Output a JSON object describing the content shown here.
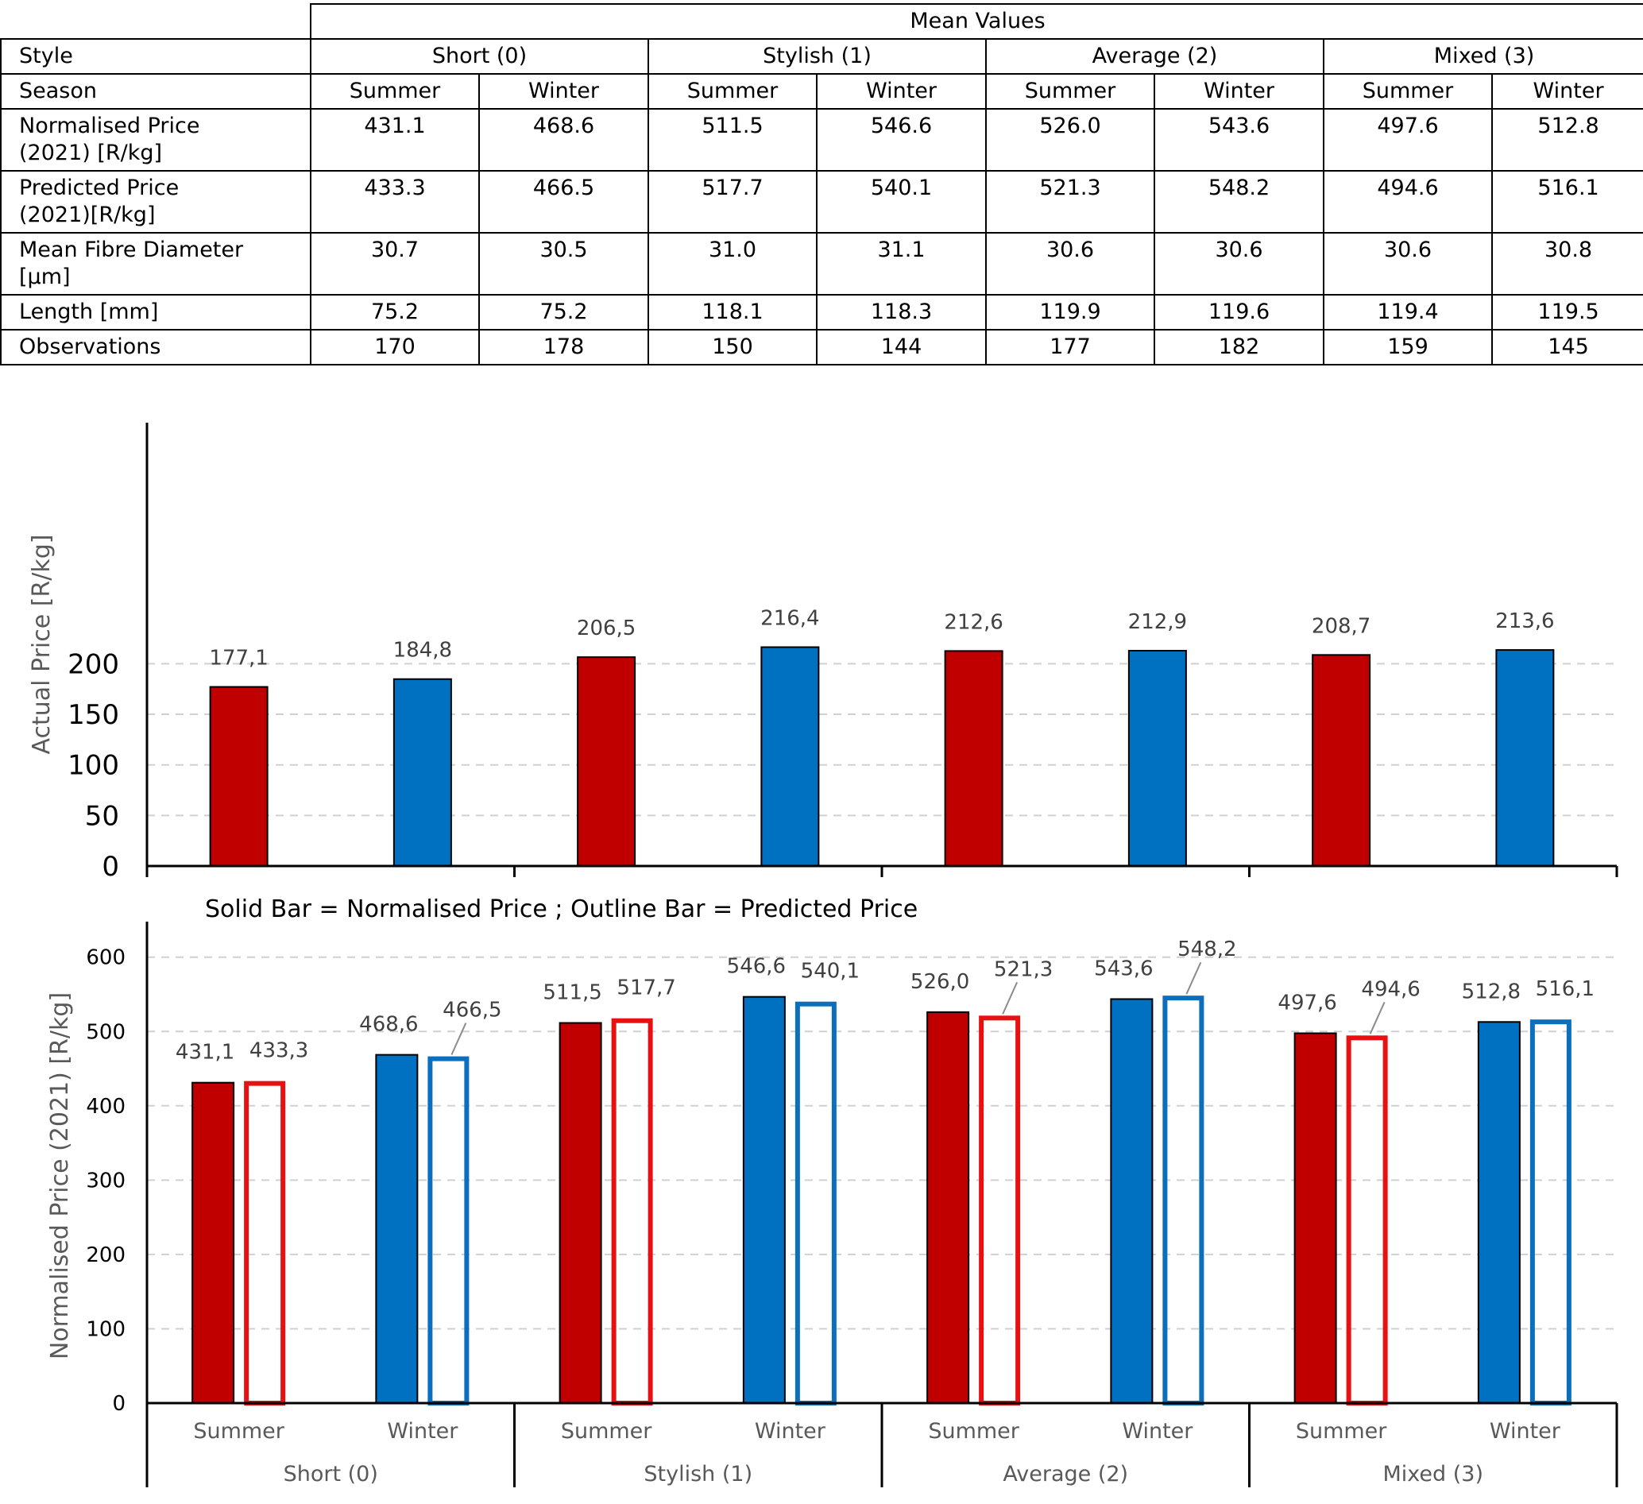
{
  "table": {
    "super_header": "Mean Values",
    "style_label": "Style",
    "season_label": "Season",
    "styles": [
      "Short (0)",
      "Stylish (1)",
      "Average (2)",
      "Mixed (3)"
    ],
    "seasons": [
      "Summer",
      "Winter",
      "Summer",
      "Winter",
      "Summer",
      "Winter",
      "Summer",
      "Winter"
    ],
    "rows": [
      {
        "label_line1": "Normalised Price",
        "label_line2": "(2021) [R/kg]",
        "values": [
          "431.1",
          "468.6",
          "511.5",
          "546.6",
          "526.0",
          "543.6",
          "497.6",
          "512.8"
        ]
      },
      {
        "label_line1": "Predicted Price",
        "label_line2": "(2021)[R/kg]",
        "values": [
          "433.3",
          "466.5",
          "517.7",
          "540.1",
          "521.3",
          "548.2",
          "494.6",
          "516.1"
        ]
      },
      {
        "label_line1": "Mean Fibre Diameter",
        "label_line2": "[µm]",
        "values": [
          "30.7",
          "30.5",
          "31.0",
          "31.1",
          "30.6",
          "30.6",
          "30.6",
          "30.8"
        ]
      },
      {
        "label_line1": "Length [mm]",
        "label_line2": "",
        "values": [
          "75.2",
          "75.2",
          "118.1",
          "118.3",
          "119.9",
          "119.6",
          "119.4",
          "119.5"
        ]
      },
      {
        "label_line1": "Observations",
        "label_line2": "",
        "values": [
          "170",
          "178",
          "150",
          "144",
          "177",
          "182",
          "159",
          "145"
        ]
      }
    ]
  },
  "colors": {
    "summer": "#C00000",
    "winter": "#0070C0",
    "summer_outline": "#E81010",
    "winter_outline": "#0B6FBD",
    "grid": "#D0D0D0",
    "axis": "#000000"
  },
  "chart_data": [
    {
      "type": "bar",
      "ylabel": "Actual Price [R/kg]",
      "ylim": [
        0,
        200
      ],
      "yticks": [
        0,
        50,
        100,
        150,
        200
      ],
      "grid": "dashed horizontal",
      "categories": [
        "Summer",
        "Winter",
        "Summer",
        "Winter",
        "Summer",
        "Winter",
        "Summer",
        "Winter"
      ],
      "groups": [
        "Short (0)",
        "Stylish (1)",
        "Average (2)",
        "Mixed (3)"
      ],
      "values": [
        177.1,
        184.8,
        206.5,
        216.4,
        212.6,
        212.9,
        208.7,
        213.6
      ],
      "value_labels": [
        "177,1",
        "184,8",
        "206,5",
        "216,4",
        "212,6",
        "212,9",
        "208,7",
        "213,6"
      ]
    },
    {
      "type": "bar",
      "note": "Solid Bar = Normalised Price ; Outline Bar = Predicted Price",
      "ylabel": "Normalised Price (2021) [R/kg]",
      "ylim": [
        0,
        600
      ],
      "yticks": [
        0,
        100,
        200,
        300,
        400,
        500,
        600
      ],
      "grid": "dashed horizontal",
      "categories": [
        "Summer",
        "Winter",
        "Summer",
        "Winter",
        "Summer",
        "Winter",
        "Summer",
        "Winter"
      ],
      "groups": [
        "Short (0)",
        "Stylish (1)",
        "Average (2)",
        "Mixed (3)"
      ],
      "series": [
        {
          "style": "solid",
          "values": [
            431.1,
            468.6,
            511.5,
            546.6,
            526.0,
            543.6,
            497.6,
            512.8
          ],
          "value_labels": [
            "431,1",
            "468,6",
            "511,5",
            "546,6",
            "526,0",
            "543,6",
            "497,6",
            "512,8"
          ]
        },
        {
          "style": "outline",
          "values": [
            433.3,
            466.5,
            517.7,
            540.1,
            521.3,
            548.2,
            494.6,
            516.1
          ],
          "value_labels": [
            "433,3",
            "466,5",
            "517,7",
            "540,1",
            "521,3",
            "548,2",
            "494,6",
            "516,1"
          ]
        }
      ]
    }
  ]
}
